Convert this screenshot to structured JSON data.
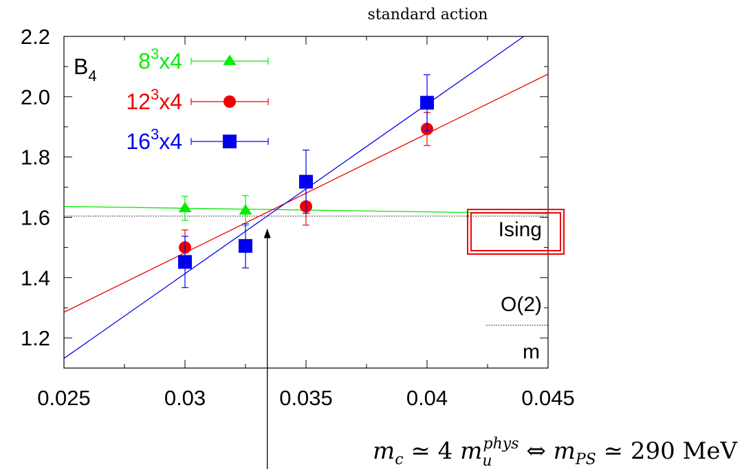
{
  "chart_data": {
    "type": "scatter",
    "title": "standard action",
    "xlabel": "m",
    "ylabel": "B",
    "ylabel_sub": "4",
    "xlim": [
      0.025,
      0.045
    ],
    "ylim": [
      1.1,
      2.2
    ],
    "x_ticks": [
      "0.025",
      "0.03",
      "0.035",
      "0.04",
      "0.045"
    ],
    "y_ticks": [
      "1.2",
      "1.4",
      "1.6",
      "1.8",
      "2.0",
      "2.2"
    ],
    "series": [
      {
        "name_base": "8",
        "name_exp": "3",
        "name_tail": "x4",
        "color": "#00ee00",
        "marker": "triangle",
        "points": [
          {
            "x": 0.03,
            "y": 1.63,
            "err": 0.04
          },
          {
            "x": 0.0325,
            "y": 1.622,
            "err": 0.05
          }
        ],
        "fit": [
          [
            0.025,
            1.636
          ],
          [
            0.045,
            1.612
          ]
        ]
      },
      {
        "name_base": "12",
        "name_exp": "3",
        "name_tail": "x4",
        "color": "#ee0000",
        "marker": "circle",
        "points": [
          {
            "x": 0.03,
            "y": 1.5,
            "err": 0.058
          },
          {
            "x": 0.035,
            "y": 1.636,
            "err": 0.062
          },
          {
            "x": 0.04,
            "y": 1.893,
            "err": 0.055
          }
        ],
        "fit": [
          [
            0.025,
            1.285
          ],
          [
            0.045,
            2.075
          ]
        ]
      },
      {
        "name_base": "16",
        "name_exp": "3",
        "name_tail": "x4",
        "color": "#0000ee",
        "marker": "square",
        "points": [
          {
            "x": 0.03,
            "y": 1.452,
            "err": 0.085
          },
          {
            "x": 0.0325,
            "y": 1.505,
            "err": 0.073
          },
          {
            "x": 0.035,
            "y": 1.718,
            "err": 0.105
          },
          {
            "x": 0.04,
            "y": 1.98,
            "err": 0.093
          }
        ],
        "fit": [
          [
            0.025,
            1.132
          ],
          [
            0.044,
            2.2
          ]
        ]
      }
    ],
    "reference_lines": [
      {
        "label": "Ising",
        "y": 1.604
      },
      {
        "label": "O(2)",
        "y": 1.242
      }
    ],
    "annotation": {
      "x": 0.0334,
      "text_parts": [
        "m",
        "c",
        " ≃ 4 ",
        "m",
        "u",
        "phys",
        " ⇔ ",
        "m",
        "PS",
        " ≃ 290 MeV"
      ]
    }
  }
}
